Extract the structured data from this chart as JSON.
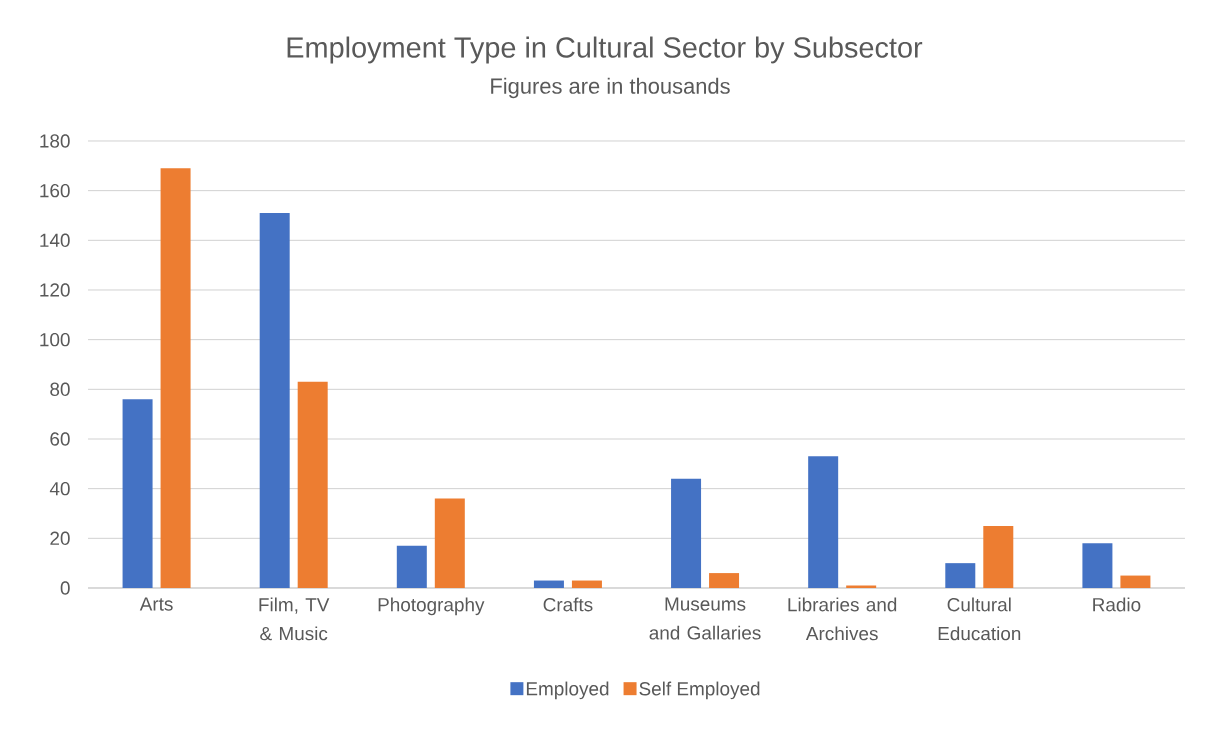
{
  "chart_data": {
    "type": "bar",
    "title": "Employment Type in Cultural Sector by Subsector",
    "subtitle": "Figures are in thousands",
    "categories": [
      "Arts",
      "Film, TV & Music",
      "Photography",
      "Crafts",
      "Museums and Gallaries",
      "Libraries and Archives",
      "Cultural Education",
      "Radio"
    ],
    "series": [
      {
        "name": "Employed",
        "color": "#4472c4",
        "values": [
          76,
          151,
          17,
          3,
          44,
          53,
          10,
          18
        ]
      },
      {
        "name": "Self Employed",
        "color": "#ed7d31",
        "values": [
          169,
          83,
          36,
          3,
          6,
          1,
          25,
          5
        ]
      }
    ],
    "ylim": [
      0,
      180
    ],
    "yticks": [
      0,
      20,
      40,
      60,
      80,
      100,
      120,
      140,
      160,
      180
    ],
    "grid": "y",
    "legend": "bottom"
  }
}
